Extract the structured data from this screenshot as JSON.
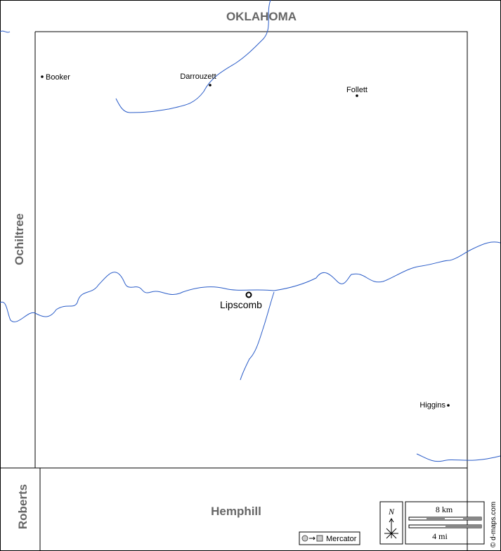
{
  "neighbors": {
    "north": "OKLAHOMA",
    "west": "Ochiltree",
    "southwest": "Roberts",
    "south": "Hemphill"
  },
  "towns": {
    "booker": "Booker",
    "darrouzett": "Darrouzett",
    "follett": "Follett",
    "seat": "Lipscomb",
    "higgins": "Higgins"
  },
  "scale": {
    "north": "N",
    "km": "8 km",
    "mi": "4 mi"
  },
  "projection": "Mercator",
  "credit": "© d-maps.com"
}
